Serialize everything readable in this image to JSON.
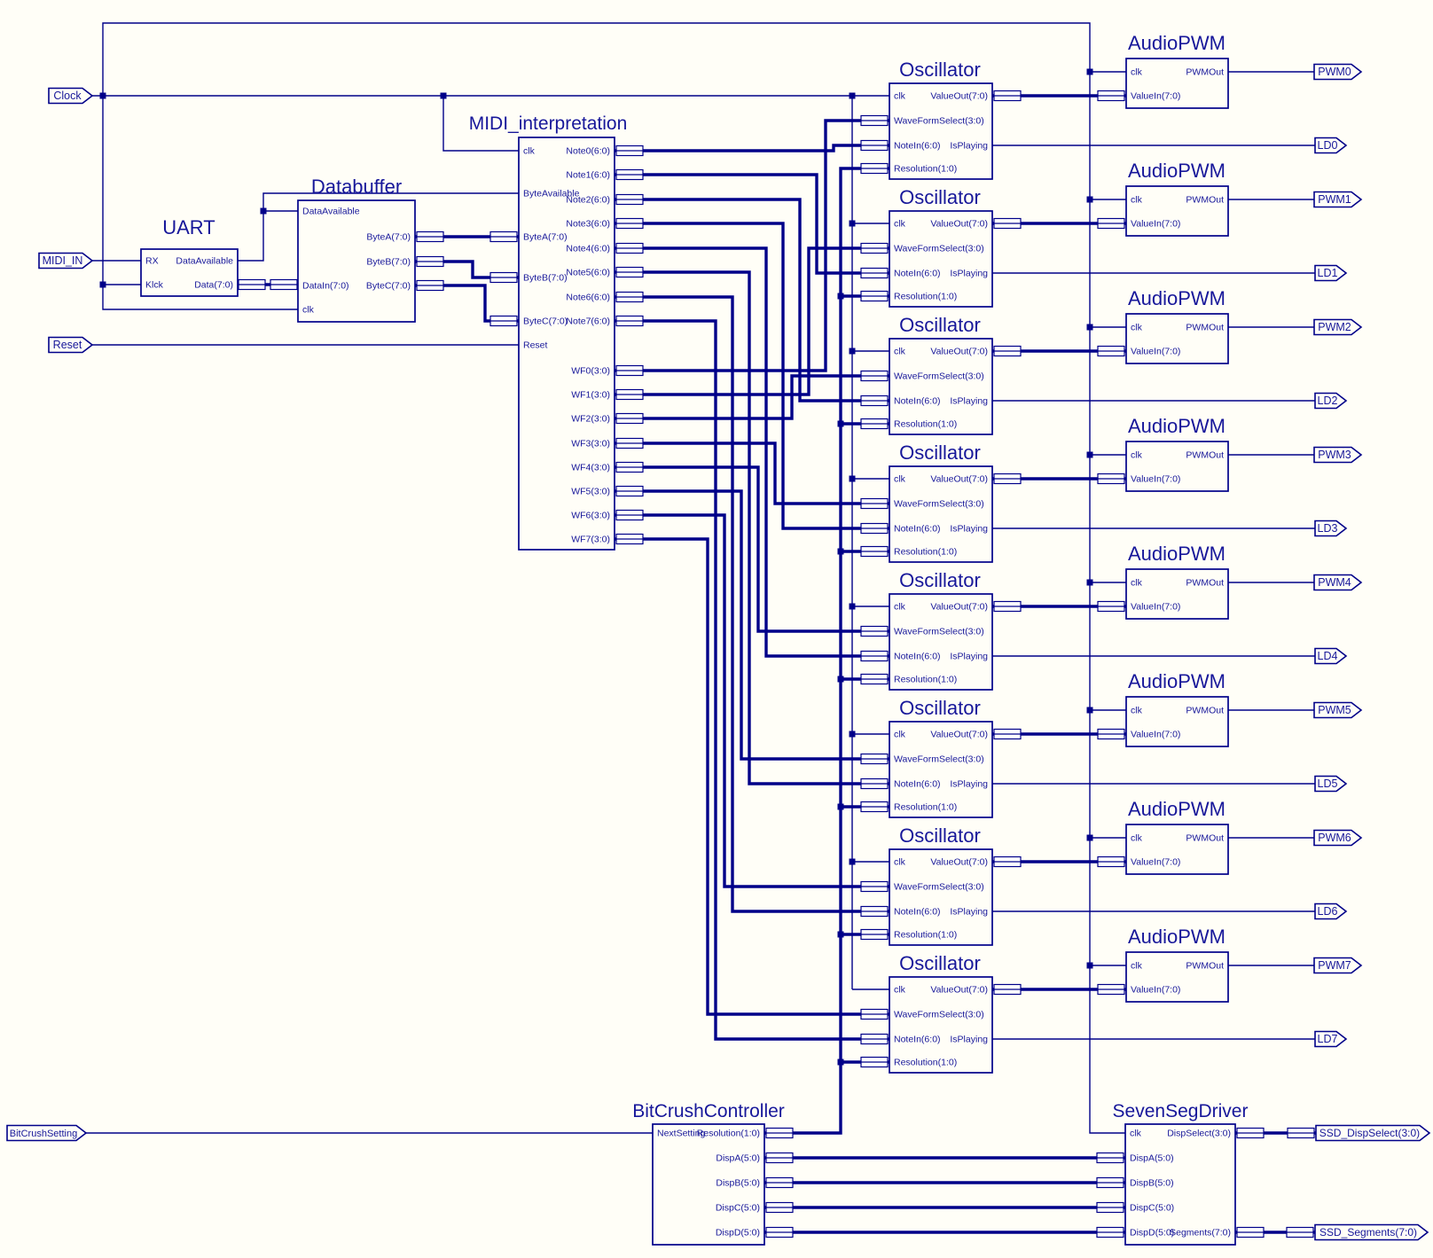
{
  "diagram": {
    "background": "#fffef7",
    "line_color": "#000089",
    "text_color": "#17179a",
    "block_types": {
      "UART": {
        "title": "UART",
        "left_pins": [
          "RX",
          "Klck"
        ],
        "right_pins": [
          "DataAvailable",
          "Data(7:0)"
        ]
      },
      "Databuffer": {
        "title": "Databuffer",
        "left_pins": [
          "DataAvailable",
          "DataIn(7:0)",
          "clk"
        ],
        "right_pins": [
          "ByteA(7:0)",
          "ByteB(7:0)",
          "ByteC(7:0)"
        ]
      },
      "MIDI_interpretation": {
        "title": "MIDI_interpretation",
        "left_pins": [
          "clk",
          "ByteAvailable",
          "ByteA(7:0)",
          "ByteB(7:0)",
          "ByteC(7:0)",
          "Reset"
        ],
        "right_pins": [
          "Note0(6:0)",
          "Note1(6:0)",
          "Note2(6:0)",
          "Note3(6:0)",
          "Note4(6:0)",
          "Note5(6:0)",
          "Note6(6:0)",
          "Note7(6:0)",
          "WF0(3:0)",
          "WF1(3:0)",
          "WF2(3:0)",
          "WF3(3:0)",
          "WF4(3:0)",
          "WF5(3:0)",
          "WF6(3:0)",
          "WF7(3:0)"
        ]
      },
      "Oscillator": {
        "title": "Oscillator",
        "left_pins": [
          "clk",
          "WaveFormSelect(3:0)",
          "NoteIn(6:0)",
          "Resolution(1:0)"
        ],
        "right_pins": [
          "ValueOut(7:0)",
          "IsPlaying"
        ]
      },
      "AudioPWM": {
        "title": "AudioPWM",
        "left_pins": [
          "clk",
          "ValueIn(7:0)"
        ],
        "right_pins": [
          "PWMOut"
        ]
      },
      "BitCrushController": {
        "title": "BitCrushController",
        "left_pins": [
          "NextSetting"
        ],
        "right_pins": [
          "Resolution(1:0)",
          "DispA(5:0)",
          "DispB(5:0)",
          "DispC(5:0)",
          "DispD(5:0)"
        ]
      },
      "SevenSegDriver": {
        "title": "SevenSegDriver",
        "left_pins": [
          "clk",
          "DispA(5:0)",
          "DispB(5:0)",
          "DispC(5:0)",
          "DispD(5:0)"
        ],
        "right_pins": [
          "DispSelect(3:0)",
          "Segments(7:0)"
        ]
      }
    },
    "oscillator_instances": 8,
    "audiopwm_instances": 8,
    "input_ports": [
      {
        "id": "clock",
        "label": "Clock"
      },
      {
        "id": "midi-in",
        "label": "MIDI_IN"
      },
      {
        "id": "reset",
        "label": "Reset"
      },
      {
        "id": "bitcrush-setting",
        "label": "BitCrushSetting"
      }
    ],
    "output_ports": [
      {
        "id": "pwm0",
        "label": "PWM0"
      },
      {
        "id": "ld0",
        "label": "LD0"
      },
      {
        "id": "pwm1",
        "label": "PWM1"
      },
      {
        "id": "ld1",
        "label": "LD1"
      },
      {
        "id": "pwm2",
        "label": "PWM2"
      },
      {
        "id": "ld2",
        "label": "LD2"
      },
      {
        "id": "pwm3",
        "label": "PWM3"
      },
      {
        "id": "ld3",
        "label": "LD3"
      },
      {
        "id": "pwm4",
        "label": "PWM4"
      },
      {
        "id": "ld4",
        "label": "LD4"
      },
      {
        "id": "pwm5",
        "label": "PWM5"
      },
      {
        "id": "ld5",
        "label": "LD5"
      },
      {
        "id": "pwm6",
        "label": "PWM6"
      },
      {
        "id": "ld6",
        "label": "LD6"
      },
      {
        "id": "pwm7",
        "label": "PWM7"
      },
      {
        "id": "ld7",
        "label": "LD7"
      },
      {
        "id": "ssd-dispselect",
        "label": "SSD_DispSelect(3:0)"
      },
      {
        "id": "ssd-segments",
        "label": "SSD_Segments(7:0)"
      }
    ]
  }
}
